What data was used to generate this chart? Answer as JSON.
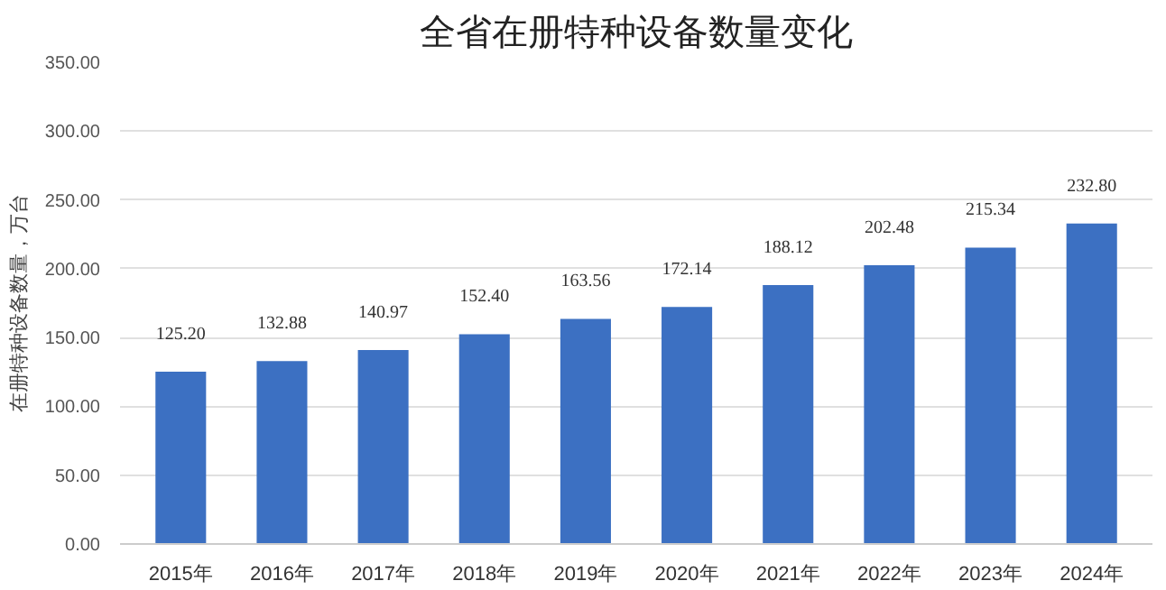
{
  "chart_data": {
    "type": "bar",
    "title": "全省在册特种设备数量变化",
    "ylabel": "在册特种设备数量，万台",
    "categories": [
      "2015年",
      "2016年",
      "2017年",
      "2018年",
      "2019年",
      "2020年",
      "2021年",
      "2022年",
      "2023年",
      "2024年"
    ],
    "values": [
      125.2,
      132.88,
      140.97,
      152.4,
      163.56,
      172.14,
      188.12,
      202.48,
      215.34,
      232.8
    ],
    "value_labels": [
      "125.20",
      "132.88",
      "140.97",
      "152.40",
      "163.56",
      "172.14",
      "188.12",
      "202.48",
      "215.34",
      "232.80"
    ],
    "color": "#3c70c2",
    "ylim": [
      0,
      350
    ],
    "yticks": [
      {
        "value": 0,
        "label": "0.00"
      },
      {
        "value": 50,
        "label": "50.00"
      },
      {
        "value": 100,
        "label": "100.00"
      },
      {
        "value": 150,
        "label": "150.00"
      },
      {
        "value": 200,
        "label": "200.00"
      },
      {
        "value": 250,
        "label": "250.00"
      },
      {
        "value": 300,
        "label": "300.00"
      },
      {
        "value": 350,
        "label": "350.00"
      }
    ],
    "grid": "y"
  }
}
